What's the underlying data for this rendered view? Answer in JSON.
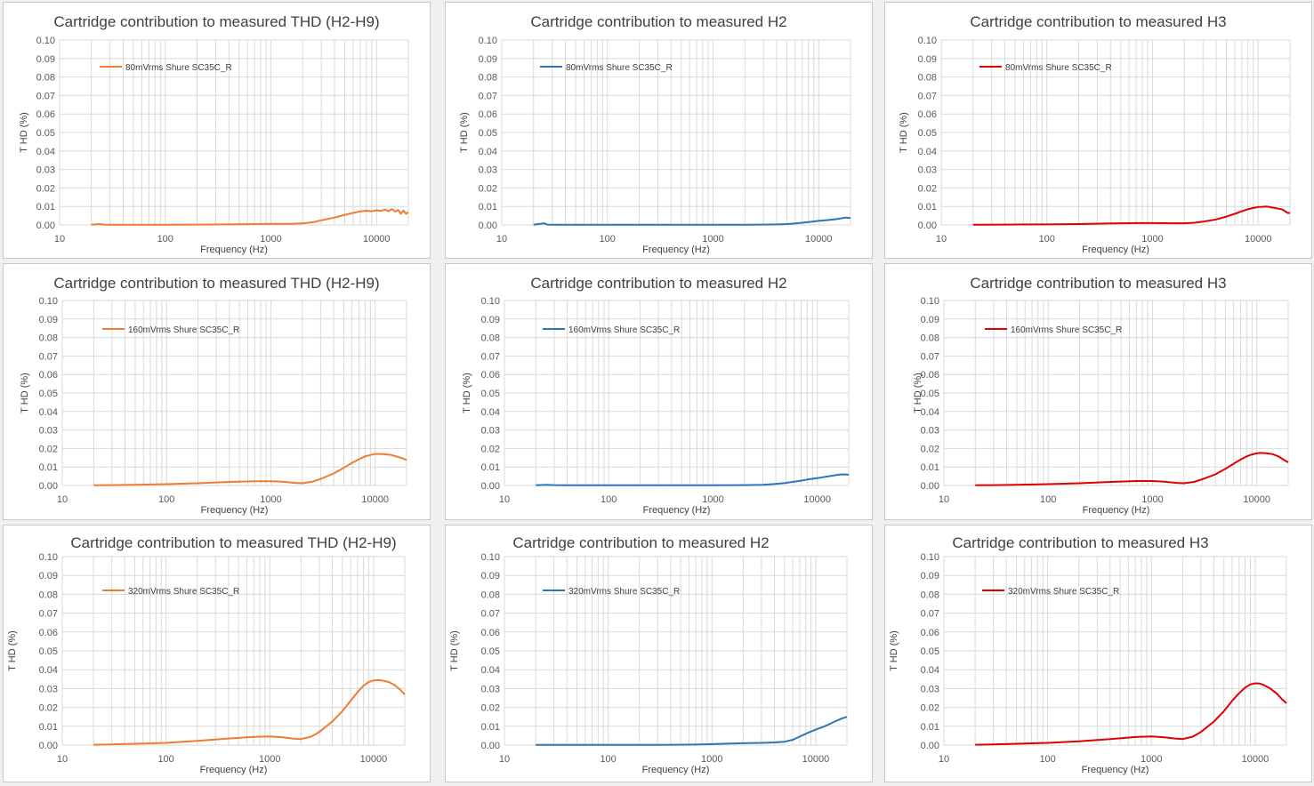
{
  "colors": {
    "thd": "#ED7D31",
    "h2": "#2E75B6",
    "h3": "#E00000"
  },
  "chart_data": [
    {
      "id": "c1",
      "type": "line",
      "title": "Cartridge contribution to measured THD (H2-H9)",
      "xlabel": "Frequency (Hz)",
      "ylabel": "T HD (%)",
      "xscale": "log",
      "xlim": [
        10,
        20000
      ],
      "ylim": [
        0,
        0.1
      ],
      "grid": true,
      "legend_position": "top-left",
      "xticks": [
        "10",
        "100",
        "1000",
        "10000"
      ],
      "yticks": [
        "0.00",
        "0.01",
        "0.02",
        "0.03",
        "0.04",
        "0.05",
        "0.06",
        "0.07",
        "0.08",
        "0.09",
        "0.10"
      ],
      "series": [
        {
          "name": "80mVrms Shure SC35C_R",
          "color": "#ED7D31",
          "x": [
            20,
            24,
            26,
            30,
            40,
            60,
            100,
            200,
            400,
            700,
            1000,
            1500,
            2000,
            2500,
            3000,
            4000,
            5000,
            6000,
            7000,
            8000,
            9000,
            10000,
            11000,
            12000,
            13000,
            14000,
            15000,
            16000,
            17000,
            18000,
            19000,
            20000
          ],
          "y": [
            0.0001,
            0.0005,
            0.0002,
            0.0001,
            0.0001,
            0.0001,
            0.0001,
            0.0002,
            0.0003,
            0.0005,
            0.0006,
            0.0006,
            0.0008,
            0.0015,
            0.0025,
            0.004,
            0.0055,
            0.0065,
            0.0073,
            0.0077,
            0.0074,
            0.008,
            0.0076,
            0.0083,
            0.0074,
            0.0086,
            0.0072,
            0.0081,
            0.006,
            0.0078,
            0.006,
            0.007
          ]
        }
      ]
    },
    {
      "id": "c2",
      "type": "line",
      "title": "Cartridge contribution to measured H2",
      "xlabel": "Frequency (Hz)",
      "ylabel": "T HD (%)",
      "xscale": "log",
      "xlim": [
        10,
        20000
      ],
      "ylim": [
        0,
        0.1
      ],
      "grid": true,
      "legend_position": "top-left",
      "xticks": [
        "10",
        "100",
        "1000",
        "10000"
      ],
      "yticks": [
        "0.00",
        "0.01",
        "0.02",
        "0.03",
        "0.04",
        "0.05",
        "0.06",
        "0.07",
        "0.08",
        "0.09",
        "0.10"
      ],
      "series": [
        {
          "name": "80mVrms Shure SC35C_R",
          "color": "#2E75B6",
          "x": [
            20,
            23,
            25,
            27,
            30,
            40,
            100,
            300,
            1000,
            2000,
            3000,
            4000,
            5000,
            6000,
            7000,
            8000,
            10000,
            12000,
            14000,
            16000,
            18000,
            20000
          ],
          "y": [
            0.0001,
            0.0006,
            0.0009,
            0.0002,
            0.0001,
            0.0001,
            0.0001,
            0.0001,
            0.0001,
            0.0001,
            0.0002,
            0.0003,
            0.0005,
            0.0008,
            0.0012,
            0.0016,
            0.0022,
            0.0026,
            0.003,
            0.0035,
            0.004,
            0.0038
          ]
        }
      ]
    },
    {
      "id": "c3",
      "type": "line",
      "title": "Cartridge contribution to measured H3",
      "xlabel": "Frequency (Hz)",
      "ylabel": "T HD (%)",
      "xscale": "log",
      "xlim": [
        10,
        20000
      ],
      "ylim": [
        0,
        0.1
      ],
      "grid": true,
      "legend_position": "top-left",
      "xticks": [
        "10",
        "100",
        "1000",
        "10000"
      ],
      "yticks": [
        "0.00",
        "0.01",
        "0.02",
        "0.03",
        "0.04",
        "0.05",
        "0.06",
        "0.07",
        "0.08",
        "0.09",
        "0.10"
      ],
      "series": [
        {
          "name": "80mVrms Shure SC35C_R",
          "color": "#E00000",
          "x": [
            20,
            40,
            100,
            200,
            400,
            700,
            1000,
            1500,
            2000,
            2500,
            3000,
            4000,
            5000,
            6000,
            7000,
            8000,
            9000,
            10000,
            11000,
            12000,
            13000,
            15000,
            17000,
            19000,
            20000
          ],
          "y": [
            0.0001,
            0.0002,
            0.0003,
            0.0005,
            0.0008,
            0.001,
            0.001,
            0.0009,
            0.0009,
            0.0012,
            0.0018,
            0.003,
            0.0045,
            0.006,
            0.0074,
            0.0085,
            0.0092,
            0.0097,
            0.0098,
            0.01,
            0.0096,
            0.009,
            0.0083,
            0.0065,
            0.0065
          ]
        }
      ]
    },
    {
      "id": "c4",
      "type": "line",
      "title": "Cartridge contribution to measured THD (H2-H9)",
      "xlabel": "Frequency (Hz)",
      "ylabel": "T HD (%)",
      "xscale": "log",
      "xlim": [
        10,
        20000
      ],
      "ylim": [
        0,
        0.1
      ],
      "grid": true,
      "legend_position": "top-left",
      "xticks": [
        "10",
        "100",
        "1000",
        "10000"
      ],
      "yticks": [
        "0.00",
        "0.01",
        "0.02",
        "0.03",
        "0.04",
        "0.05",
        "0.06",
        "0.07",
        "0.08",
        "0.09",
        "0.10"
      ],
      "series": [
        {
          "name": "160mVrms Shure SC35C_R",
          "color": "#ED7D31",
          "x": [
            20,
            30,
            50,
            100,
            200,
            400,
            700,
            1000,
            1300,
            1700,
            2000,
            2500,
            3000,
            4000,
            5000,
            6000,
            7000,
            8000,
            9000,
            10000,
            11000,
            12000,
            14000,
            16000,
            18000,
            20000
          ],
          "y": [
            0.0001,
            0.0002,
            0.0004,
            0.0007,
            0.0012,
            0.0019,
            0.0023,
            0.0023,
            0.002,
            0.0014,
            0.0012,
            0.002,
            0.0035,
            0.0065,
            0.0095,
            0.0122,
            0.0142,
            0.0157,
            0.0165,
            0.017,
            0.017,
            0.0169,
            0.0166,
            0.0157,
            0.0148,
            0.0138
          ]
        }
      ]
    },
    {
      "id": "c5",
      "type": "line",
      "title": "Cartridge contribution to measured H2",
      "xlabel": "Frequency (Hz)",
      "ylabel": "T HD (%)",
      "xscale": "log",
      "xlim": [
        10,
        20000
      ],
      "ylim": [
        0,
        0.1
      ],
      "grid": true,
      "legend_position": "top-left",
      "xticks": [
        "10",
        "100",
        "1000",
        "10000"
      ],
      "yticks": [
        "0.00",
        "0.01",
        "0.02",
        "0.03",
        "0.04",
        "0.05",
        "0.06",
        "0.07",
        "0.08",
        "0.09",
        "0.10"
      ],
      "series": [
        {
          "name": "160mVrms Shure SC35C_R",
          "color": "#2E75B6",
          "x": [
            20,
            25,
            30,
            50,
            100,
            300,
            1000,
            2000,
            3000,
            4000,
            5000,
            6000,
            7000,
            8000,
            10000,
            12000,
            14000,
            16000,
            18000,
            20000
          ],
          "y": [
            0.0001,
            0.0004,
            0.0002,
            0.0001,
            0.0001,
            0.0001,
            0.0001,
            0.0002,
            0.0004,
            0.0008,
            0.0014,
            0.002,
            0.0026,
            0.0032,
            0.004,
            0.0047,
            0.0053,
            0.0058,
            0.006,
            0.0058
          ]
        }
      ]
    },
    {
      "id": "c6",
      "type": "line",
      "title": "Cartridge contribution to measured H3",
      "xlabel": "Frequency (Hz)",
      "ylabel": "T HD (%)",
      "xscale": "log",
      "xlim": [
        10,
        20000
      ],
      "ylim": [
        0,
        0.1
      ],
      "grid": true,
      "legend_position": "top-left",
      "xticks": [
        "10",
        "100",
        "1000",
        "10000"
      ],
      "yticks": [
        "0.00",
        "0.01",
        "0.02",
        "0.03",
        "0.04",
        "0.05",
        "0.06",
        "0.07",
        "0.08",
        "0.09",
        "0.10"
      ],
      "series": [
        {
          "name": "160mVrms Shure SC35C_R",
          "color": "#E00000",
          "x": [
            20,
            30,
            50,
            100,
            200,
            400,
            700,
            1000,
            1300,
            1700,
            2000,
            2500,
            3000,
            4000,
            5000,
            6000,
            7000,
            8000,
            9000,
            10000,
            11000,
            12000,
            14000,
            16000,
            18000,
            20000
          ],
          "y": [
            0.0001,
            0.0002,
            0.0004,
            0.0007,
            0.0012,
            0.0019,
            0.0024,
            0.0024,
            0.002,
            0.0014,
            0.0012,
            0.0019,
            0.0033,
            0.006,
            0.009,
            0.0118,
            0.014,
            0.0157,
            0.0168,
            0.0174,
            0.0176,
            0.0175,
            0.017,
            0.0158,
            0.014,
            0.0125
          ]
        }
      ]
    },
    {
      "id": "c7",
      "type": "line",
      "title": "Cartridge contribution to measured THD (H2-H9)",
      "xlabel": "Frequency (Hz)",
      "ylabel": "T HD (%)",
      "xscale": "log",
      "xlim": [
        10,
        20000
      ],
      "ylim": [
        0,
        0.1
      ],
      "grid": true,
      "legend_position": "top-left",
      "xticks": [
        "10",
        "100",
        "1000",
        "10000"
      ],
      "yticks": [
        "0.00",
        "0.01",
        "0.02",
        "0.03",
        "0.04",
        "0.05",
        "0.06",
        "0.07",
        "0.08",
        "0.09",
        "0.10"
      ],
      "series": [
        {
          "name": "320mVrms Shure SC35C_R",
          "color": "#ED7D31",
          "x": [
            20,
            30,
            50,
            100,
            200,
            400,
            700,
            1000,
            1300,
            1700,
            2000,
            2500,
            3000,
            4000,
            5000,
            6000,
            7000,
            8000,
            9000,
            10000,
            11000,
            12000,
            14000,
            16000,
            18000,
            20000
          ],
          "y": [
            0.0002,
            0.0004,
            0.0007,
            0.0012,
            0.0022,
            0.0035,
            0.0044,
            0.0046,
            0.0042,
            0.0034,
            0.0032,
            0.0045,
            0.007,
            0.0125,
            0.018,
            0.0235,
            0.028,
            0.0315,
            0.0335,
            0.0343,
            0.0345,
            0.0343,
            0.0335,
            0.0318,
            0.0295,
            0.0268
          ]
        }
      ]
    },
    {
      "id": "c8",
      "type": "line",
      "title": "Cartridge contribution to measured H2",
      "xlabel": "Frequency (Hz)",
      "ylabel": "T HD (%)",
      "xscale": "log",
      "xlim": [
        10,
        20000
      ],
      "ylim": [
        0,
        0.1
      ],
      "grid": true,
      "legend_position": "top-left",
      "xticks": [
        "10",
        "100",
        "1000",
        "10000"
      ],
      "yticks": [
        "0.00",
        "0.01",
        "0.02",
        "0.03",
        "0.04",
        "0.05",
        "0.06",
        "0.07",
        "0.08",
        "0.09",
        "0.10"
      ],
      "series": [
        {
          "name": "320mVrms Shure SC35C_R",
          "color": "#2E75B6",
          "x": [
            20,
            50,
            100,
            300,
            700,
            1000,
            1500,
            2000,
            3000,
            4000,
            5000,
            6000,
            7000,
            8000,
            9000,
            10000,
            12000,
            14000,
            16000,
            18000,
            20000
          ],
          "y": [
            0.0001,
            0.0001,
            0.0001,
            0.0001,
            0.0003,
            0.0005,
            0.0008,
            0.001,
            0.0012,
            0.0014,
            0.0018,
            0.0028,
            0.0045,
            0.006,
            0.0072,
            0.0082,
            0.0098,
            0.0115,
            0.013,
            0.0142,
            0.015
          ]
        }
      ]
    },
    {
      "id": "c9",
      "type": "line",
      "title": "Cartridge contribution to measured H3",
      "xlabel": "Frequency (Hz)",
      "ylabel": "T HD (%)",
      "xscale": "log",
      "xlim": [
        10,
        20000
      ],
      "ylim": [
        0,
        0.1
      ],
      "grid": true,
      "legend_position": "top-left",
      "xticks": [
        "10",
        "100",
        "1000",
        "10000"
      ],
      "yticks": [
        "0.00",
        "0.01",
        "0.02",
        "0.03",
        "0.04",
        "0.05",
        "0.06",
        "0.07",
        "0.08",
        "0.09",
        "0.10"
      ],
      "series": [
        {
          "name": "320mVrms Shure SC35C_R",
          "color": "#E00000",
          "x": [
            20,
            30,
            50,
            100,
            200,
            400,
            700,
            1000,
            1300,
            1700,
            2000,
            2500,
            3000,
            4000,
            5000,
            6000,
            7000,
            8000,
            9000,
            10000,
            11000,
            12000,
            14000,
            16000,
            18000,
            20000
          ],
          "y": [
            0.0002,
            0.0004,
            0.0007,
            0.0012,
            0.002,
            0.0032,
            0.0043,
            0.0046,
            0.0042,
            0.0035,
            0.0032,
            0.0045,
            0.007,
            0.0125,
            0.018,
            0.0235,
            0.0275,
            0.0305,
            0.0322,
            0.0328,
            0.0327,
            0.032,
            0.03,
            0.0275,
            0.0245,
            0.0222
          ]
        }
      ]
    }
  ]
}
